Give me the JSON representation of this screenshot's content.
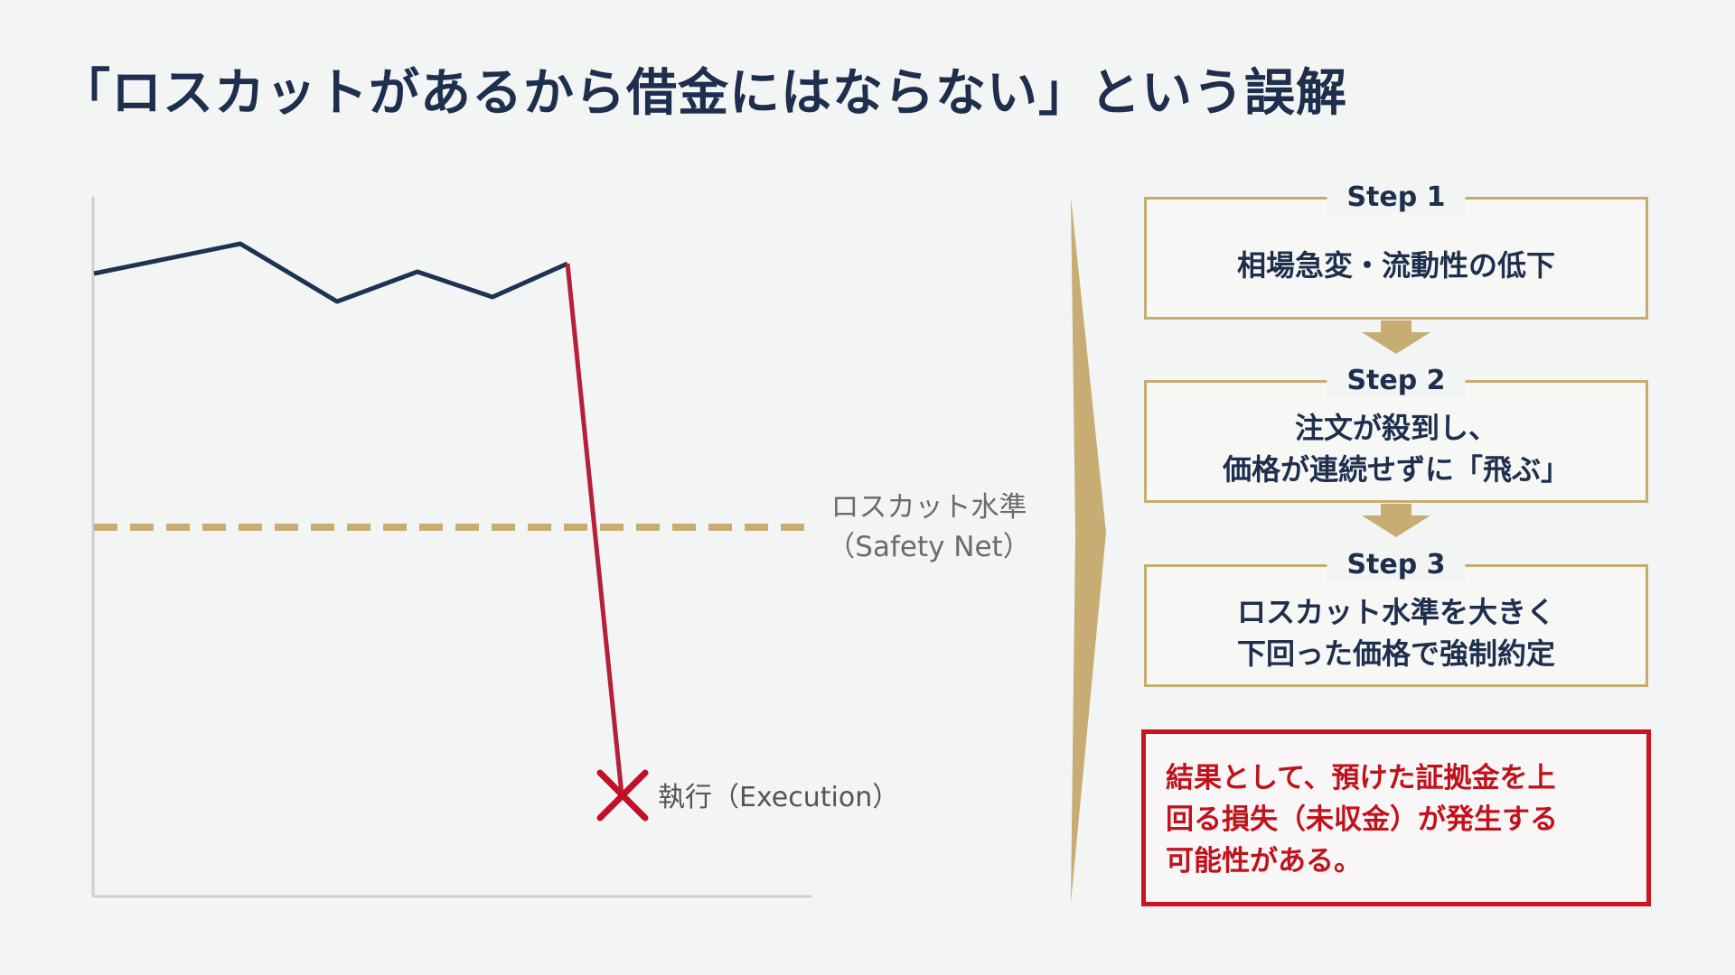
{
  "title": "「ロスカットがあるから借金にはならない」という誤解",
  "chart": {
    "safety_line_label": [
      "ロスカット水準",
      "（Safety Net）"
    ],
    "execution_label": "執行（Execution）",
    "colors": {
      "price": "#1d3352",
      "crash": "#b51f3a",
      "safety": "#c7ad73",
      "axis": "#cfcfcf",
      "marker": "#c2102a"
    }
  },
  "steps": [
    {
      "tag": "Step 1",
      "lines": [
        "相場急変・流動性の低下"
      ]
    },
    {
      "tag": "Step 2",
      "lines": [
        "注文が殺到し、",
        "価格が連続せずに「飛ぶ」"
      ]
    },
    {
      "tag": "Step 3",
      "lines": [
        "ロスカット水準を大きく",
        "下回った価格で強制約定"
      ]
    }
  ],
  "result": {
    "lines": [
      "結果として、預けた証拠金を上",
      "回る損失（未収金）が発生する",
      "可能性がある。"
    ]
  },
  "colors": {
    "navy": "#1d2f4d",
    "gold": "#c7ac72",
    "red": "#c8151f"
  }
}
